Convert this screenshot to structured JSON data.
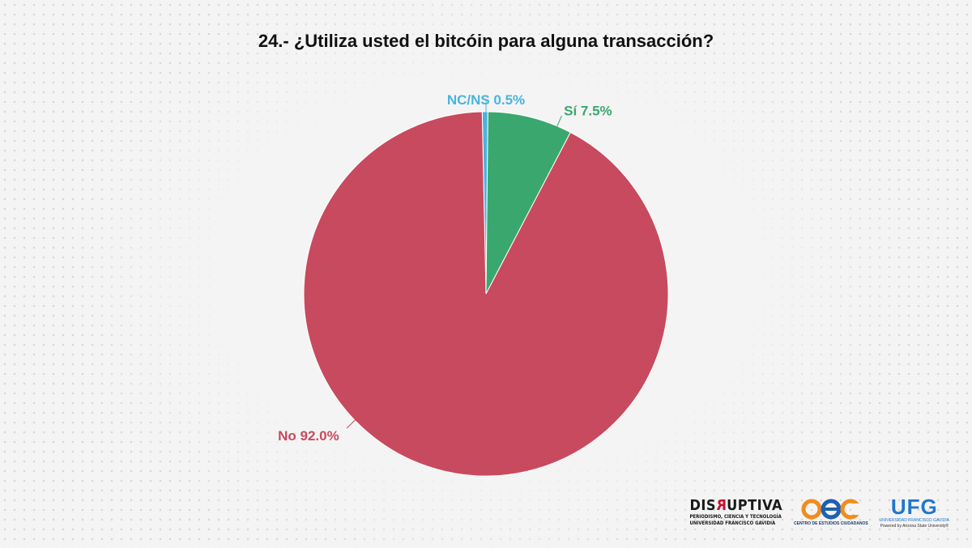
{
  "chart_data": {
    "type": "pie",
    "title": "24.- ¿Utiliza usted el bitcóin para alguna transacción?",
    "slices": [
      {
        "label": "NC/NS",
        "value": 0.5,
        "display": "NC/NS 0.5%",
        "color": "#4ab3e0"
      },
      {
        "label": "Sí",
        "value": 7.5,
        "display": "Sí 7.5%",
        "color": "#3aa86e"
      },
      {
        "label": "No",
        "value": 92.0,
        "display": "No 92.0%",
        "color": "#c84a5e"
      }
    ]
  },
  "logos": {
    "disruptiva": {
      "pre": "DIS",
      "r": "R",
      "post": "UPTIVA",
      "line1": "PERIODISMO, CIENCIA Y TECNOLOGÍA",
      "line2": "UNIVERSIDAD FRANCISCO GAVIDIA"
    },
    "cec": {
      "caption": "CENTRO DE ESTUDIOS CIUDADANOS"
    },
    "ufg": {
      "name": "UFG",
      "line1": "UNIVERSIDAD FRANCISCO GAVIDIA",
      "line2": "Powered by Arizona State University®"
    }
  }
}
